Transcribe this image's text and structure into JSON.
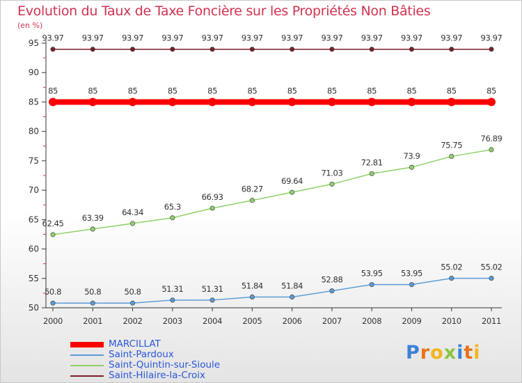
{
  "title": "Evolution du Taux de Taxe Foncière sur les Propriétés Non Bâties",
  "unit_label": "(en %)",
  "logo": {
    "letters": [
      "P",
      "r",
      "o",
      "x",
      "i",
      "t",
      "i"
    ],
    "colors": [
      "#3b82d6",
      "#e8731a",
      "#f2b51c",
      "#8cc63f",
      "#3b82d6",
      "#e8731a",
      "#f2b51c"
    ]
  },
  "chart_data": {
    "type": "line",
    "title": "Evolution du Taux de Taxe Foncière sur les Propriétés Non Bâties",
    "xlabel": "",
    "ylabel": "(en %)",
    "x": [
      "2000",
      "2001",
      "2002",
      "2003",
      "2004",
      "2005",
      "2006",
      "2007",
      "2008",
      "2009",
      "2010",
      "2011"
    ],
    "ylim": [
      50,
      95
    ],
    "yticks": [
      50,
      55,
      60,
      65,
      70,
      75,
      80,
      85,
      90,
      95
    ],
    "grid": false,
    "legend_position": "bottom-left",
    "series": [
      {
        "name": "MARCILLAT",
        "color": "#ff0000",
        "values": [
          85,
          85,
          85,
          85,
          85,
          85,
          85,
          85,
          85,
          85,
          85,
          85
        ],
        "labels": [
          "85",
          "85",
          "85",
          "85",
          "85",
          "85",
          "85",
          "85",
          "85",
          "85",
          "85",
          "85"
        ]
      },
      {
        "name": "Saint-Pardoux",
        "color": "#5b9bd5",
        "values": [
          50.8,
          50.8,
          50.8,
          51.31,
          51.31,
          51.84,
          51.84,
          52.88,
          53.95,
          53.95,
          55.02,
          55.02
        ],
        "labels": [
          "50.8",
          "50.8",
          "50.8",
          "51.31",
          "51.31",
          "51.84",
          "51.84",
          "52.88",
          "53.95",
          "53.95",
          "55.02",
          "55.02"
        ]
      },
      {
        "name": "Saint-Quintin-sur-Sioule",
        "color": "#8fd16a",
        "values": [
          62.45,
          63.39,
          64.34,
          65.3,
          66.93,
          68.27,
          69.64,
          71.03,
          72.81,
          73.9,
          75.75,
          76.89
        ],
        "labels": [
          "62.45",
          "63.39",
          "64.34",
          "65.3",
          "66.93",
          "68.27",
          "69.64",
          "71.03",
          "72.81",
          "73.9",
          "75.75",
          "76.89"
        ]
      },
      {
        "name": "Saint-Hilaire-la-Croix",
        "color": "#7a1f2b",
        "values": [
          93.97,
          93.97,
          93.97,
          93.97,
          93.97,
          93.97,
          93.97,
          93.97,
          93.97,
          93.97,
          93.97,
          93.97
        ],
        "labels": [
          "93.97",
          "93.97",
          "93.97",
          "93.97",
          "93.97",
          "93.97",
          "93.97",
          "93.97",
          "93.97",
          "93.97",
          "93.97",
          "93.97"
        ]
      }
    ]
  }
}
